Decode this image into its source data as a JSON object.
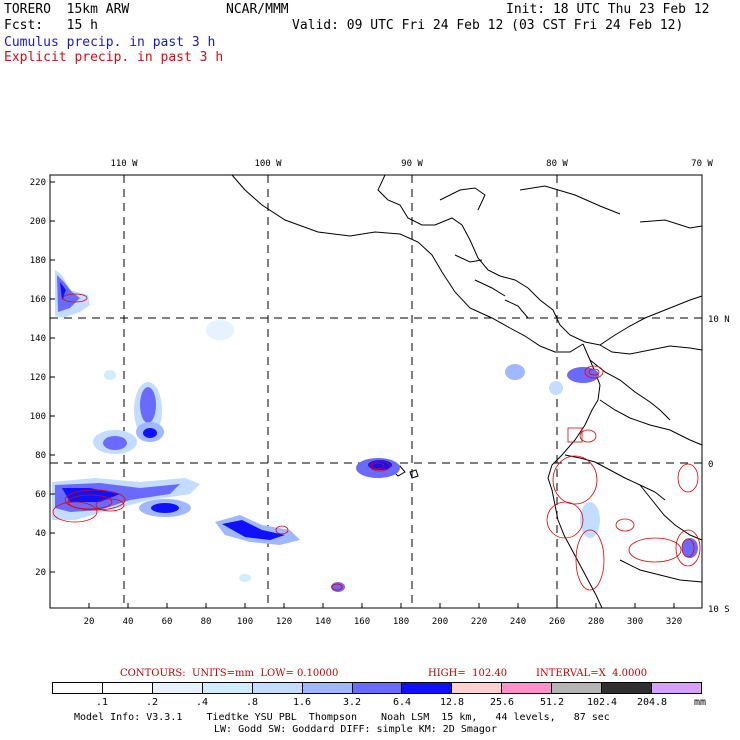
{
  "header": {
    "model": "TORERO  15km ARW",
    "org": "NCAR/MMM",
    "init": "Init: 18 UTC Thu 23 Feb 12",
    "fcst": "Fcst:   15 h",
    "valid": "Valid: 09 UTC Fri 24 Feb 12 (03 CST Fri 24 Feb 12)",
    "field1": "Cumulus precip. in past 3 h",
    "field2": "Explicit precip. in past 3 h"
  },
  "axes": {
    "lon_labels": [
      "110 W",
      "100 W",
      "90 W",
      "80 W",
      "70 W"
    ],
    "lat_labels": [
      "10 N",
      "0",
      "10 S"
    ],
    "y_ticks": [
      "220",
      "200",
      "180",
      "160",
      "140",
      "120",
      "100",
      "80",
      "60",
      "40",
      "20"
    ],
    "x_ticks": [
      "20",
      "40",
      "60",
      "80",
      "100",
      "120",
      "140",
      "160",
      "180",
      "200",
      "220",
      "240",
      "260",
      "280",
      "300",
      "320"
    ]
  },
  "contours": {
    "label": "CONTOURS:  UNITS=mm  LOW= 0.10000",
    "high": "HIGH=  102.40",
    "interval": "INTERVAL=X  4.0000"
  },
  "colorbar": {
    "unit": "mm",
    "labels": [
      ".1",
      ".2",
      ".4",
      ".8",
      "1.6",
      "3.2",
      "6.4",
      "12.8",
      "25.6",
      "51.2",
      "102.4",
      "204.8"
    ],
    "colors": [
      "#ffffff",
      "#ffffff",
      "#e6f2ff",
      "#d0ecff",
      "#c4dcff",
      "#a0b8ff",
      "#6a6aff",
      "#1010ff",
      "#ffd0d0",
      "#ff90c8",
      "#b4b4b4",
      "#303030",
      "#d6a0ff"
    ]
  },
  "footer": {
    "line1": "Model Info: V3.3.1    Tiedtke YSU PBL  Thompson    Noah LSM  15 km,   44 levels,   87 sec",
    "line2": "LW: Godd SW: Goddard DIFF: simple KM: 2D Smagor"
  }
}
